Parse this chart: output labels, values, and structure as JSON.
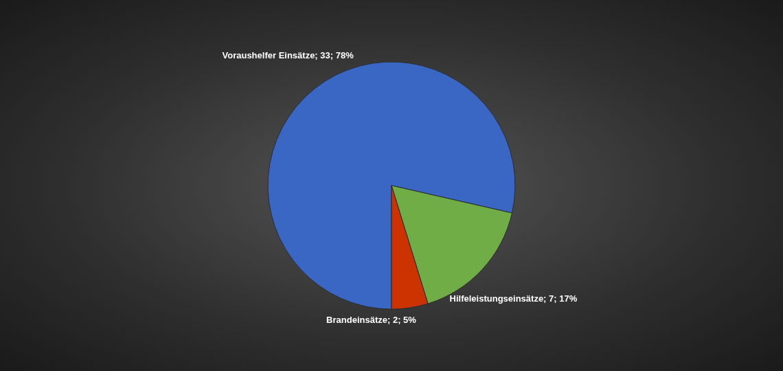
{
  "chart_data": {
    "type": "pie",
    "categories": [
      "Voraushelfer Einsätze",
      "Hilfeleistungseinsätze",
      "Brandeinsätze"
    ],
    "values": [
      33,
      7,
      2
    ],
    "value_labels": [
      "33; 78%",
      "7; 17%",
      "2; 5%"
    ],
    "colors": [
      "#3a67c4",
      "#70ad47",
      "#cc3300"
    ]
  }
}
